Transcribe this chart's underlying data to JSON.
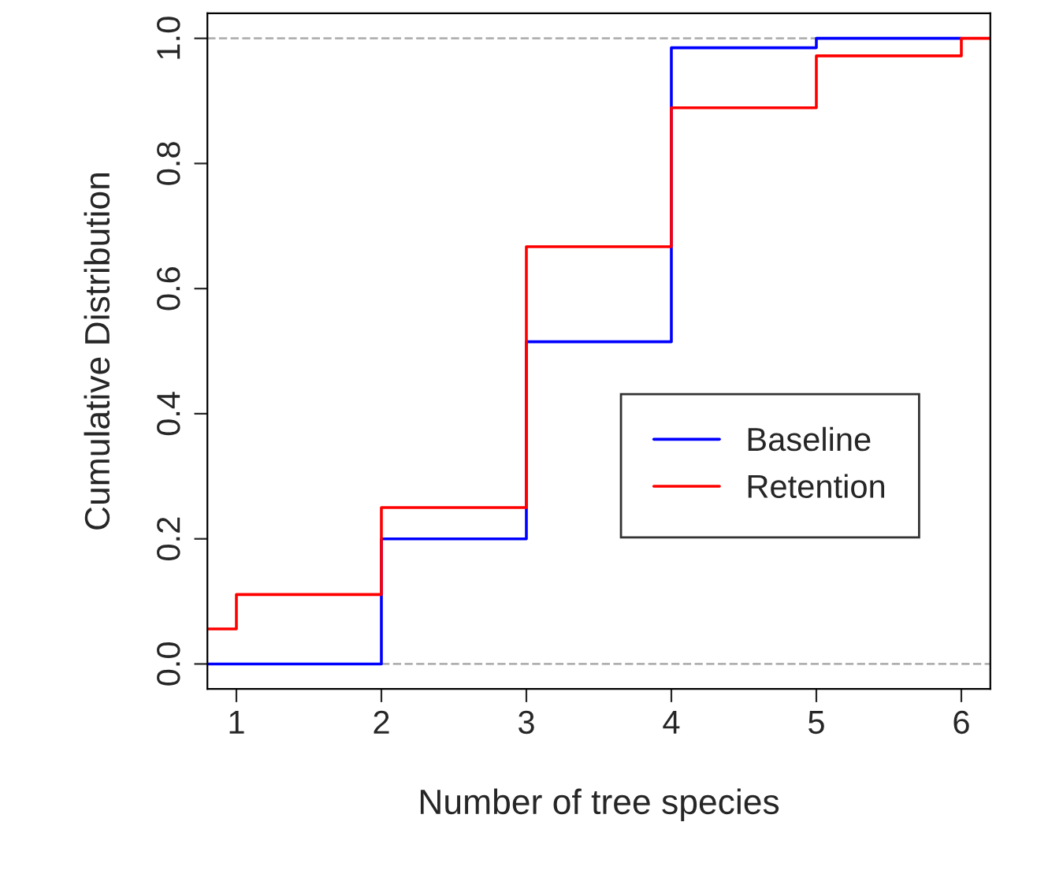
{
  "chart_data": {
    "type": "step",
    "xlabel": "Number of tree species",
    "ylabel": "Cumulative Distribution",
    "series": [
      {
        "name": "Baseline",
        "color": "#0000ff",
        "x": [
          0.8,
          2,
          3,
          4,
          5,
          6
        ],
        "values": [
          0,
          0.2,
          0.515,
          0.985,
          1,
          1
        ]
      },
      {
        "name": "Retention",
        "color": "#ff0000",
        "x": [
          0.8,
          1,
          2,
          3,
          4,
          5,
          6,
          6.2
        ],
        "values": [
          0.056,
          0.111,
          0.25,
          0.667,
          0.889,
          0.972,
          1,
          1
        ]
      }
    ],
    "xlim": [
      0.8,
      6.2
    ],
    "ylim": [
      -0.04,
      1.04
    ],
    "xticks": [
      1,
      2,
      3,
      4,
      5,
      6
    ],
    "yticks": [
      {
        "value": 0,
        "label": "0.0"
      },
      {
        "value": 0.2,
        "label": "0.2"
      },
      {
        "value": 0.4,
        "label": "0.4"
      },
      {
        "value": 0.6,
        "label": "0.6"
      },
      {
        "value": 0.8,
        "label": "0.8"
      },
      {
        "value": 1,
        "label": "1.0"
      }
    ],
    "ref_lines": [
      {
        "axis": "y",
        "value": 0,
        "color": "#b0b0b0",
        "line_style": "dashed"
      },
      {
        "axis": "y",
        "value": 1,
        "color": "#b0b0b0",
        "line_style": "dashed"
      }
    ],
    "legend": "bottom right",
    "grid": false
  }
}
